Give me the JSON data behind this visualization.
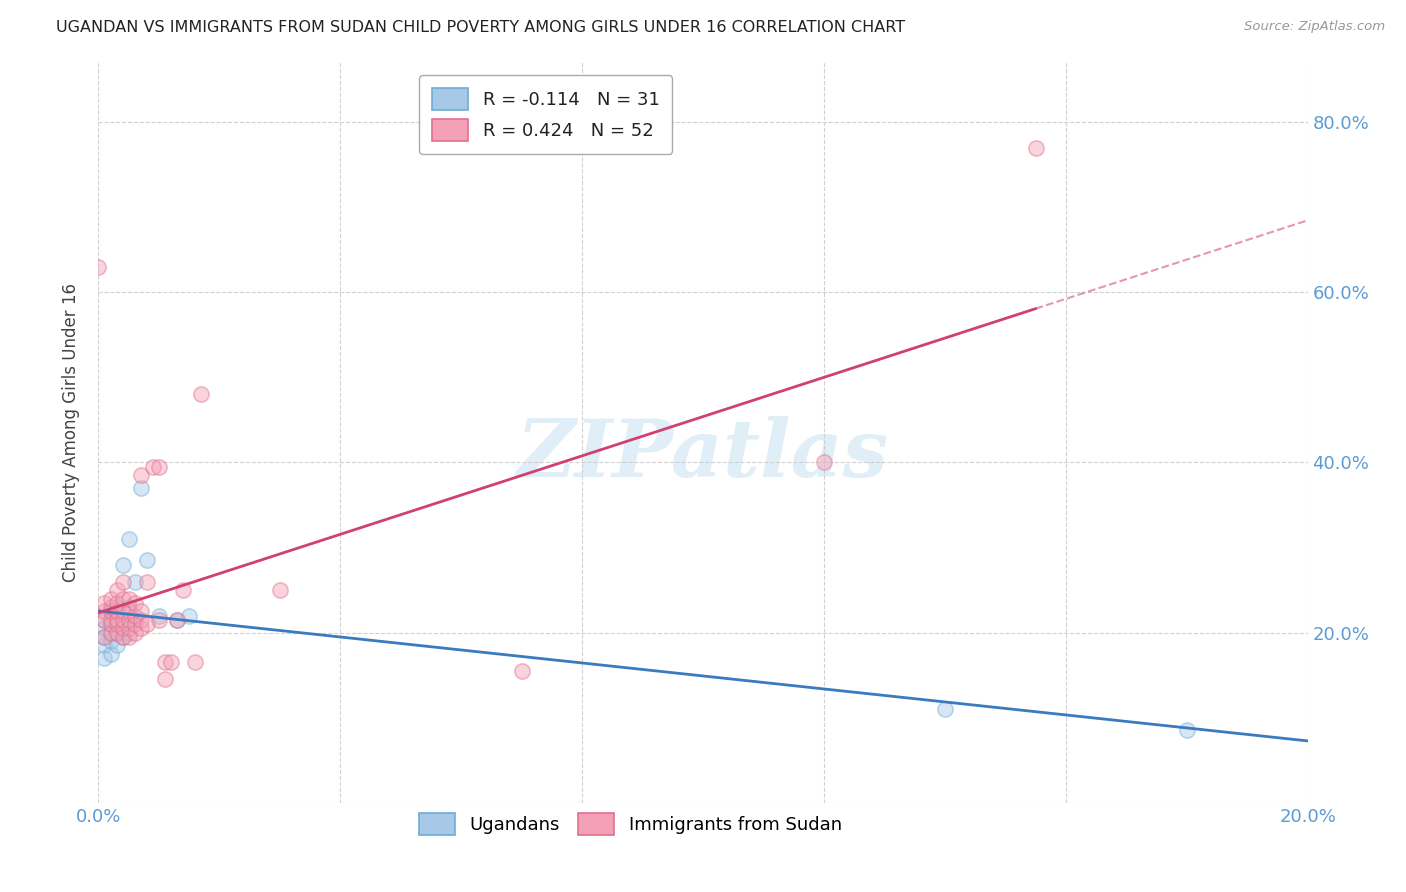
{
  "title": "UGANDAN VS IMMIGRANTS FROM SUDAN CHILD POVERTY AMONG GIRLS UNDER 16 CORRELATION CHART",
  "source": "Source: ZipAtlas.com",
  "tick_color": "#5b9bd5",
  "ylabel": "Child Poverty Among Girls Under 16",
  "xlim": [
    0.0,
    0.2
  ],
  "ylim": [
    0.0,
    0.87
  ],
  "xticks": [
    0.0,
    0.04,
    0.08,
    0.12,
    0.16,
    0.2
  ],
  "xtick_labels_show": [
    "0.0%",
    "",
    "",
    "",
    "",
    "20.0%"
  ],
  "yticks_right": [
    0.2,
    0.4,
    0.6,
    0.8
  ],
  "right_ytick_labels": [
    "20.0%",
    "40.0%",
    "60.0%",
    "80.0%"
  ],
  "blue_R": -0.114,
  "blue_N": 31,
  "pink_R": 0.424,
  "pink_N": 52,
  "blue_color": "#a8c8e8",
  "pink_color": "#f4a0b5",
  "blue_edge_color": "#6baed6",
  "pink_edge_color": "#e07090",
  "blue_line_color": "#3a7abf",
  "pink_line_color": "#d04070",
  "blue_scatter_x": [
    0.001,
    0.001,
    0.001,
    0.001,
    0.001,
    0.002,
    0.002,
    0.002,
    0.002,
    0.002,
    0.003,
    0.003,
    0.003,
    0.003,
    0.004,
    0.004,
    0.004,
    0.004,
    0.005,
    0.005,
    0.005,
    0.005,
    0.006,
    0.006,
    0.007,
    0.008,
    0.01,
    0.013,
    0.015,
    0.14,
    0.18
  ],
  "blue_scatter_y": [
    0.17,
    0.185,
    0.195,
    0.205,
    0.215,
    0.175,
    0.19,
    0.2,
    0.21,
    0.225,
    0.185,
    0.2,
    0.215,
    0.23,
    0.195,
    0.21,
    0.225,
    0.28,
    0.2,
    0.215,
    0.23,
    0.31,
    0.215,
    0.26,
    0.37,
    0.285,
    0.22,
    0.215,
    0.22,
    0.11,
    0.085
  ],
  "pink_scatter_x": [
    0.0,
    0.001,
    0.001,
    0.001,
    0.001,
    0.002,
    0.002,
    0.002,
    0.002,
    0.002,
    0.002,
    0.003,
    0.003,
    0.003,
    0.003,
    0.003,
    0.003,
    0.004,
    0.004,
    0.004,
    0.004,
    0.004,
    0.004,
    0.005,
    0.005,
    0.005,
    0.005,
    0.005,
    0.006,
    0.006,
    0.006,
    0.006,
    0.007,
    0.007,
    0.007,
    0.007,
    0.008,
    0.008,
    0.009,
    0.01,
    0.01,
    0.011,
    0.011,
    0.012,
    0.013,
    0.014,
    0.016,
    0.017,
    0.03,
    0.07,
    0.12,
    0.155
  ],
  "pink_scatter_y": [
    0.63,
    0.195,
    0.215,
    0.225,
    0.235,
    0.2,
    0.21,
    0.215,
    0.225,
    0.23,
    0.24,
    0.2,
    0.21,
    0.215,
    0.225,
    0.235,
    0.25,
    0.195,
    0.205,
    0.215,
    0.225,
    0.24,
    0.26,
    0.195,
    0.205,
    0.215,
    0.225,
    0.24,
    0.2,
    0.21,
    0.22,
    0.235,
    0.205,
    0.215,
    0.225,
    0.385,
    0.21,
    0.26,
    0.395,
    0.215,
    0.395,
    0.145,
    0.165,
    0.165,
    0.215,
    0.25,
    0.165,
    0.48,
    0.25,
    0.155,
    0.4,
    0.77
  ],
  "watermark_text": "ZIPatlas",
  "legend_blue_label": "R = -0.114   N = 31",
  "legend_pink_label": "R = 0.424   N = 52",
  "legend_blue_N_color": "#3a7abf",
  "legend_pink_N_color": "#d04070",
  "background_color": "#ffffff",
  "grid_color": "#cccccc",
  "scatter_size": 120,
  "scatter_alpha": 0.45
}
